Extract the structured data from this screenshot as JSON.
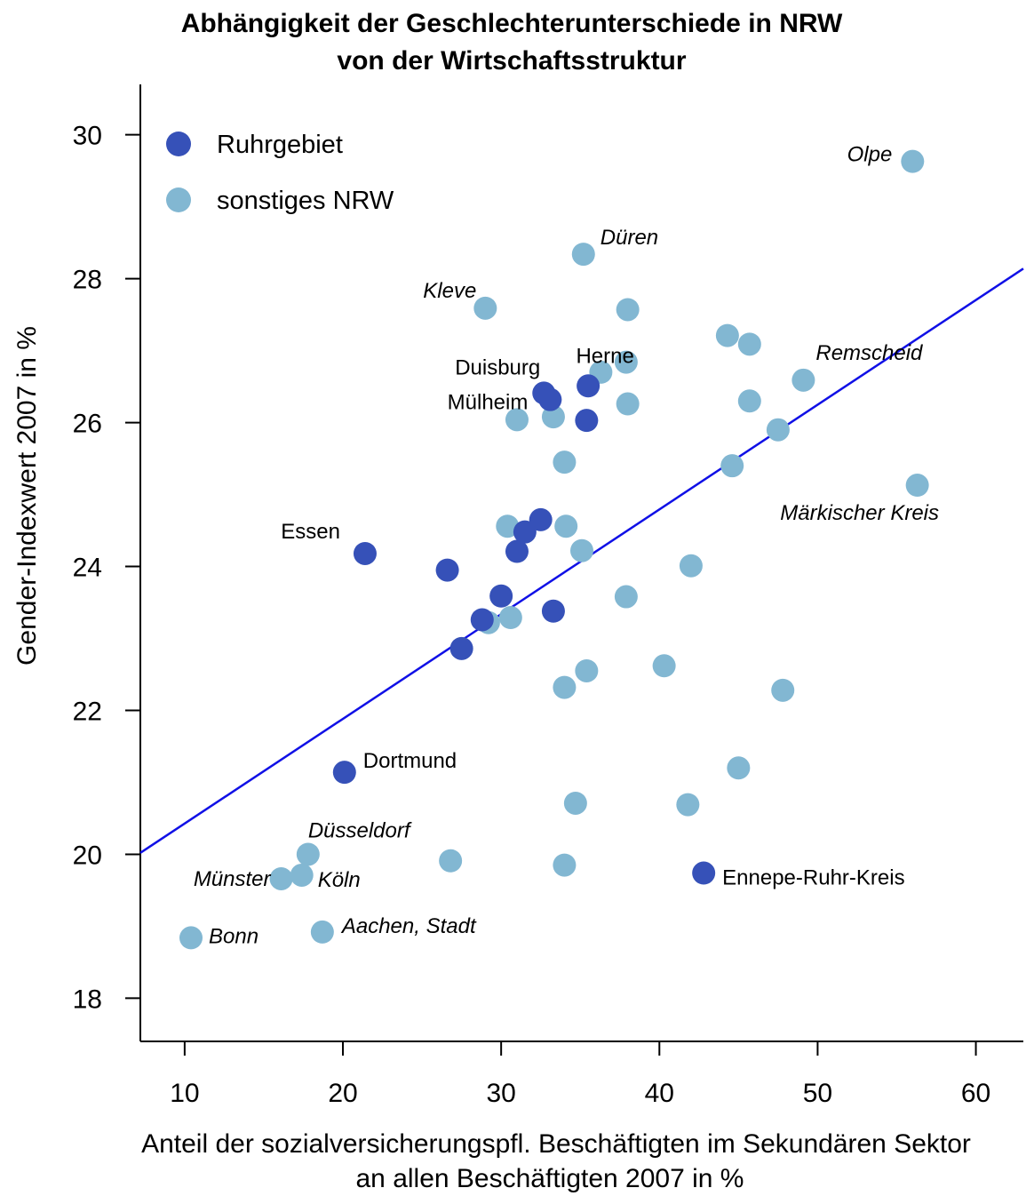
{
  "chart_data": {
    "type": "scatter",
    "title": "Abhängigkeit der Geschlechterunterschiede in NRW",
    "subtitle": "von der Wirtschaftsstruktur",
    "xlabel": [
      "Anteil der sozialversicherungspfl. Beschäftigten im Sekundären Sektor",
      "an allen Beschäftigten 2007 in %"
    ],
    "ylabel": "Gender-Indexwert 2007 in %",
    "xlim": [
      7.2,
      63.0
    ],
    "ylim": [
      17.4,
      30.7
    ],
    "xticks": [
      10,
      20,
      30,
      40,
      50,
      60
    ],
    "yticks": [
      18,
      20,
      22,
      24,
      26,
      28,
      30
    ],
    "grid": false,
    "legend_position": "top-left",
    "colors": {
      "ruhr": "#3651B8",
      "other": "#82B7D2",
      "trend": "#1010E6"
    },
    "trendline": {
      "x": [
        7.2,
        63.0
      ],
      "y": [
        20.02,
        28.14
      ]
    },
    "series": [
      {
        "name": "Ruhrgebiet",
        "color": "#3651B8",
        "points": [
          {
            "x": 21.4,
            "y": 24.18,
            "label": "Essen"
          },
          {
            "x": 32.7,
            "y": 26.41,
            "label": "Duisburg"
          },
          {
            "x": 33.1,
            "y": 26.32,
            "label": "Mülheim"
          },
          {
            "x": 35.5,
            "y": 26.51,
            "label": "Herne"
          },
          {
            "x": 35.4,
            "y": 26.03
          },
          {
            "x": 26.6,
            "y": 23.95
          },
          {
            "x": 30.0,
            "y": 23.59
          },
          {
            "x": 28.8,
            "y": 23.26
          },
          {
            "x": 27.5,
            "y": 22.86
          },
          {
            "x": 31.0,
            "y": 24.21
          },
          {
            "x": 31.5,
            "y": 24.48
          },
          {
            "x": 32.5,
            "y": 24.65
          },
          {
            "x": 33.3,
            "y": 23.38
          },
          {
            "x": 20.1,
            "y": 21.14,
            "label": "Dortmund"
          },
          {
            "x": 42.8,
            "y": 19.74,
            "label": "Ennepe-Ruhr-Kreis"
          }
        ]
      },
      {
        "name": "sonstiges NRW",
        "color": "#82B7D2",
        "points": [
          {
            "x": 56.0,
            "y": 29.63,
            "label": "Olpe"
          },
          {
            "x": 35.2,
            "y": 28.34,
            "label": "Düren"
          },
          {
            "x": 29.0,
            "y": 27.59,
            "label": "Kleve"
          },
          {
            "x": 38.0,
            "y": 27.57
          },
          {
            "x": 44.3,
            "y": 27.21
          },
          {
            "x": 45.7,
            "y": 27.09
          },
          {
            "x": 49.1,
            "y": 26.59,
            "label": "Remscheid"
          },
          {
            "x": 36.3,
            "y": 26.7
          },
          {
            "x": 37.9,
            "y": 26.84
          },
          {
            "x": 38.0,
            "y": 26.26
          },
          {
            "x": 45.7,
            "y": 26.3
          },
          {
            "x": 31.0,
            "y": 26.04
          },
          {
            "x": 33.3,
            "y": 26.08
          },
          {
            "x": 47.5,
            "y": 25.9
          },
          {
            "x": 34.0,
            "y": 25.45
          },
          {
            "x": 44.6,
            "y": 25.4
          },
          {
            "x": 56.3,
            "y": 25.13,
            "label": "Märkischer Kreis"
          },
          {
            "x": 30.4,
            "y": 24.56
          },
          {
            "x": 34.1,
            "y": 24.56
          },
          {
            "x": 35.1,
            "y": 24.22
          },
          {
            "x": 42.0,
            "y": 24.01
          },
          {
            "x": 37.9,
            "y": 23.58
          },
          {
            "x": 29.2,
            "y": 23.22
          },
          {
            "x": 30.6,
            "y": 23.29
          },
          {
            "x": 35.4,
            "y": 22.55
          },
          {
            "x": 40.3,
            "y": 22.62
          },
          {
            "x": 34.0,
            "y": 22.32
          },
          {
            "x": 47.8,
            "y": 22.28
          },
          {
            "x": 45.0,
            "y": 21.2
          },
          {
            "x": 34.7,
            "y": 20.71
          },
          {
            "x": 41.8,
            "y": 20.69
          },
          {
            "x": 17.8,
            "y": 20.0,
            "label": "Düsseldorf"
          },
          {
            "x": 26.8,
            "y": 19.91
          },
          {
            "x": 34.0,
            "y": 19.85
          },
          {
            "x": 16.1,
            "y": 19.66,
            "label": "Münster"
          },
          {
            "x": 17.4,
            "y": 19.71,
            "label": "Köln"
          },
          {
            "x": 18.7,
            "y": 18.92,
            "label": "Aachen, Stadt"
          },
          {
            "x": 10.4,
            "y": 18.84,
            "label": "Bonn"
          }
        ]
      }
    ]
  }
}
